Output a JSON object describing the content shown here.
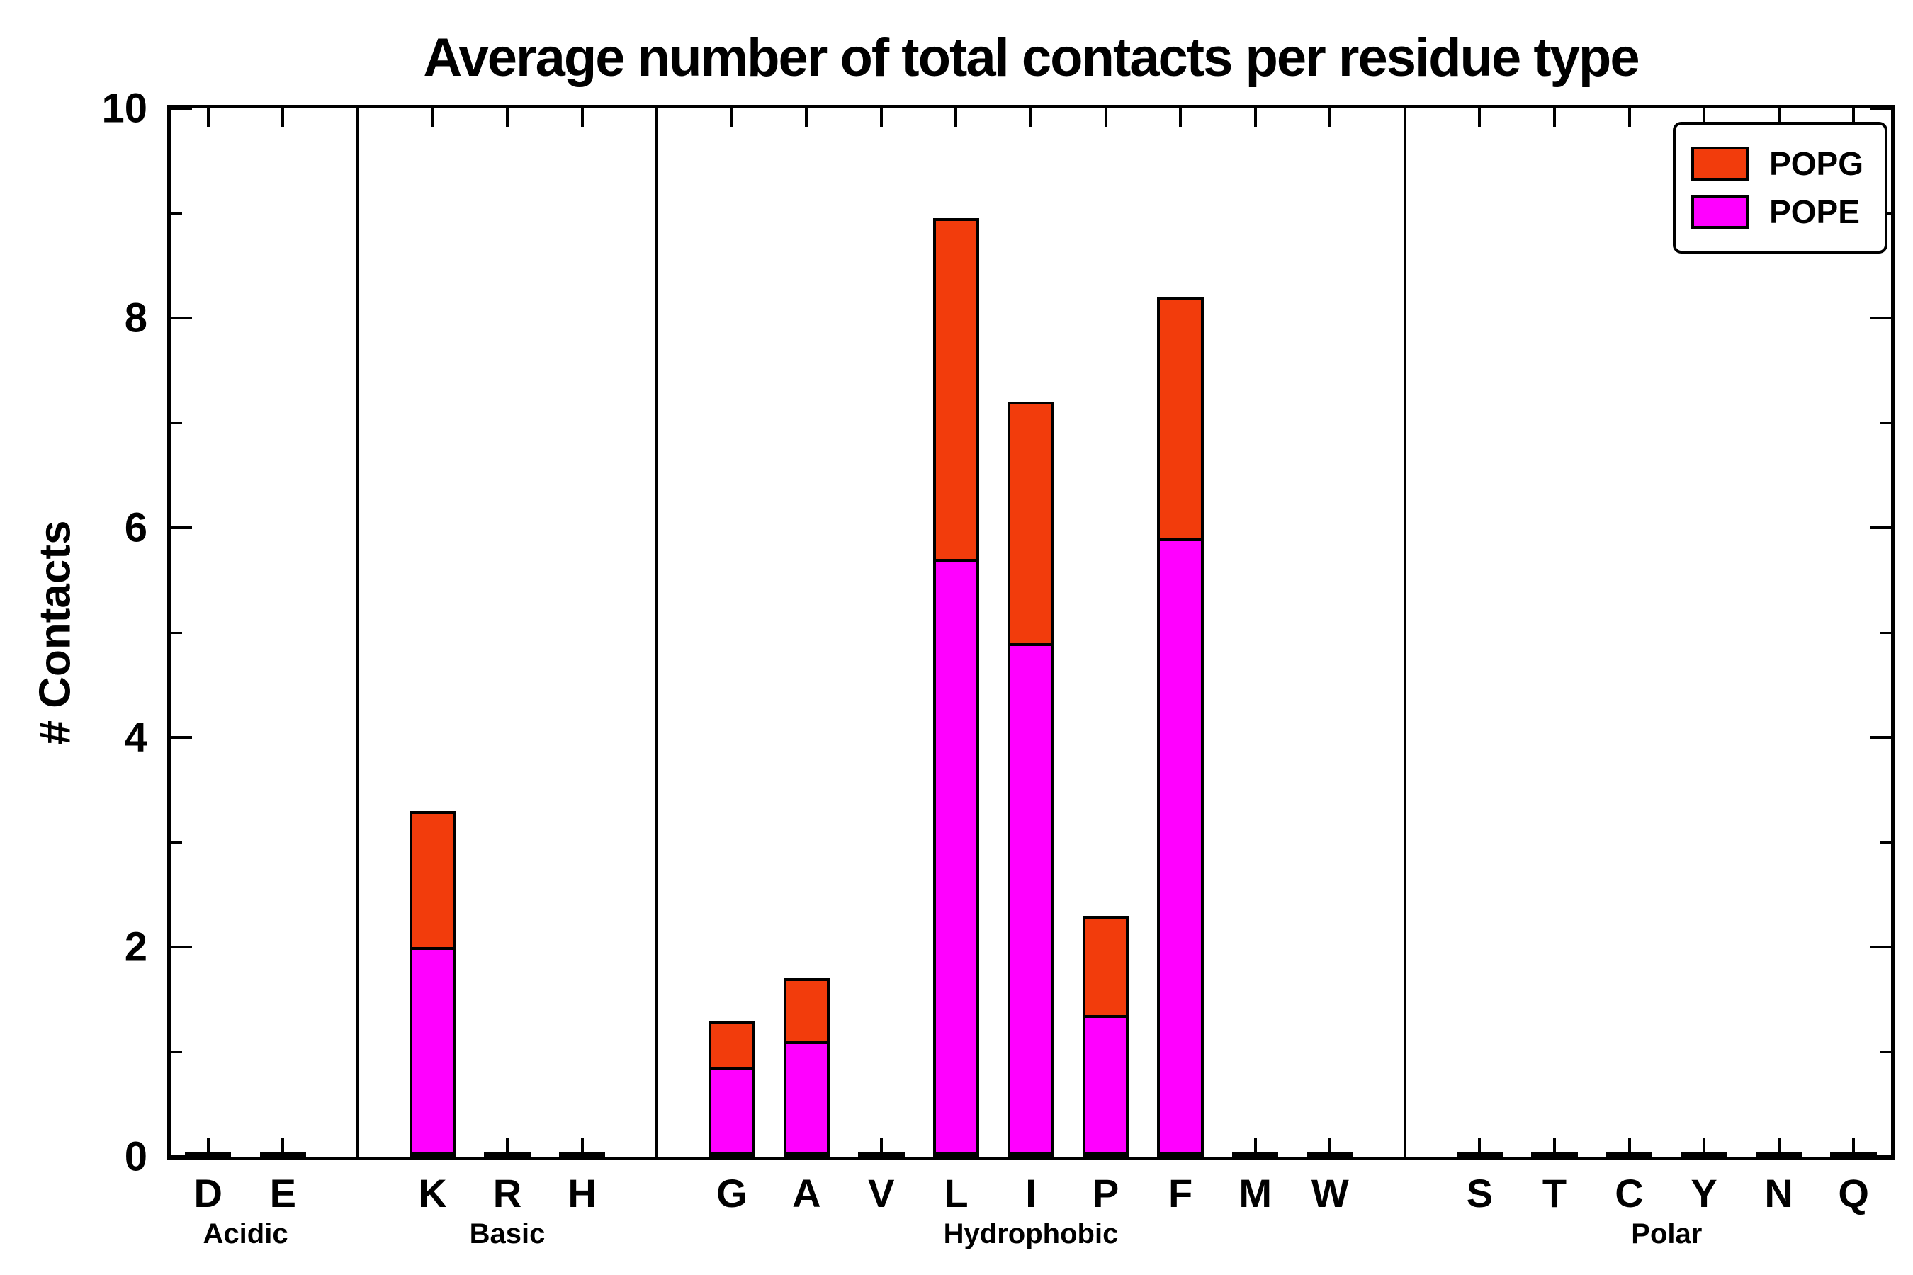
{
  "figure": {
    "background": "#ffffff",
    "axis_color": "#000000"
  },
  "chart_data": {
    "type": "bar",
    "stacked": true,
    "title": "Average number of total contacts per residue type",
    "ylabel": "# Contacts",
    "xlabel": "",
    "ylim": [
      0,
      10
    ],
    "yticks_major": [
      0,
      2,
      4,
      6,
      8,
      10
    ],
    "yticks_minor": [
      1,
      3,
      5,
      7,
      9
    ],
    "grid": false,
    "legend_position": "upper right",
    "legend": [
      "POPG",
      "POPE"
    ],
    "groups": [
      {
        "label": "Acidic",
        "categories": [
          "D",
          "E"
        ]
      },
      {
        "label": "Basic",
        "categories": [
          "K",
          "R",
          "H"
        ]
      },
      {
        "label": "Hydrophobic",
        "categories": [
          "G",
          "A",
          "V",
          "L",
          "I",
          "P",
          "F",
          "M",
          "W"
        ]
      },
      {
        "label": "Polar",
        "categories": [
          "S",
          "T",
          "C",
          "Y",
          "N",
          "Q"
        ]
      }
    ],
    "categories_flat": [
      "D",
      "E",
      "K",
      "R",
      "H",
      "G",
      "A",
      "V",
      "L",
      "I",
      "P",
      "F",
      "M",
      "W",
      "S",
      "T",
      "C",
      "Y",
      "N",
      "Q"
    ],
    "series": [
      {
        "name": "POPE",
        "color": "#ff00ff",
        "values": [
          0,
          0,
          2.0,
          0,
          0,
          0.85,
          1.1,
          0,
          5.7,
          4.9,
          1.35,
          5.9,
          0,
          0,
          0,
          0,
          0,
          0,
          0,
          0
        ]
      },
      {
        "name": "POPG",
        "color": "#f23c0c",
        "values": [
          0,
          0,
          1.3,
          0,
          0,
          0.45,
          0.6,
          0,
          3.25,
          2.3,
          0.95,
          2.3,
          0,
          0,
          0,
          0,
          0,
          0,
          0,
          0
        ]
      }
    ],
    "totals": [
      0,
      0,
      3.3,
      0,
      0,
      1.3,
      1.7,
      0,
      8.95,
      7.2,
      2.3,
      8.2,
      0,
      0,
      0,
      0,
      0,
      0,
      0,
      0
    ]
  }
}
